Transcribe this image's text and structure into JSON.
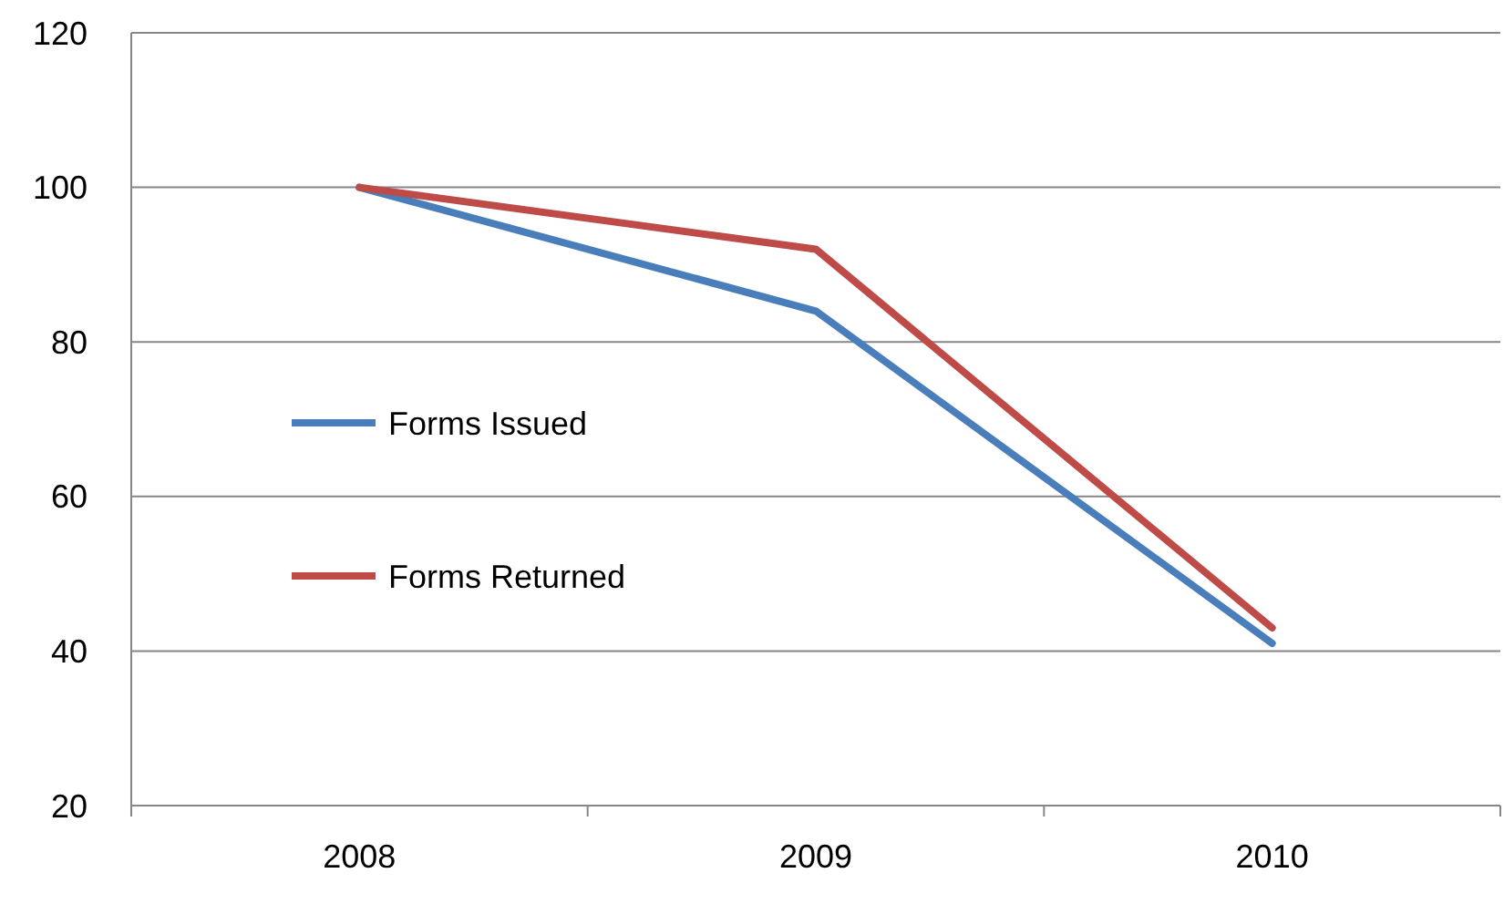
{
  "chart_data": {
    "type": "line",
    "categories": [
      "2008",
      "2009",
      "2010"
    ],
    "series": [
      {
        "name": "Forms Issued",
        "color": "#4a7ebb",
        "values": [
          100,
          84,
          41
        ]
      },
      {
        "name": "Forms Returned",
        "color": "#be4b48",
        "values": [
          100,
          92,
          43
        ]
      }
    ],
    "ylim": [
      20,
      120
    ],
    "yticks": [
      20,
      40,
      60,
      80,
      100,
      120
    ],
    "grid": "y",
    "legend": "left",
    "marker": "none",
    "line_style": "solid"
  }
}
